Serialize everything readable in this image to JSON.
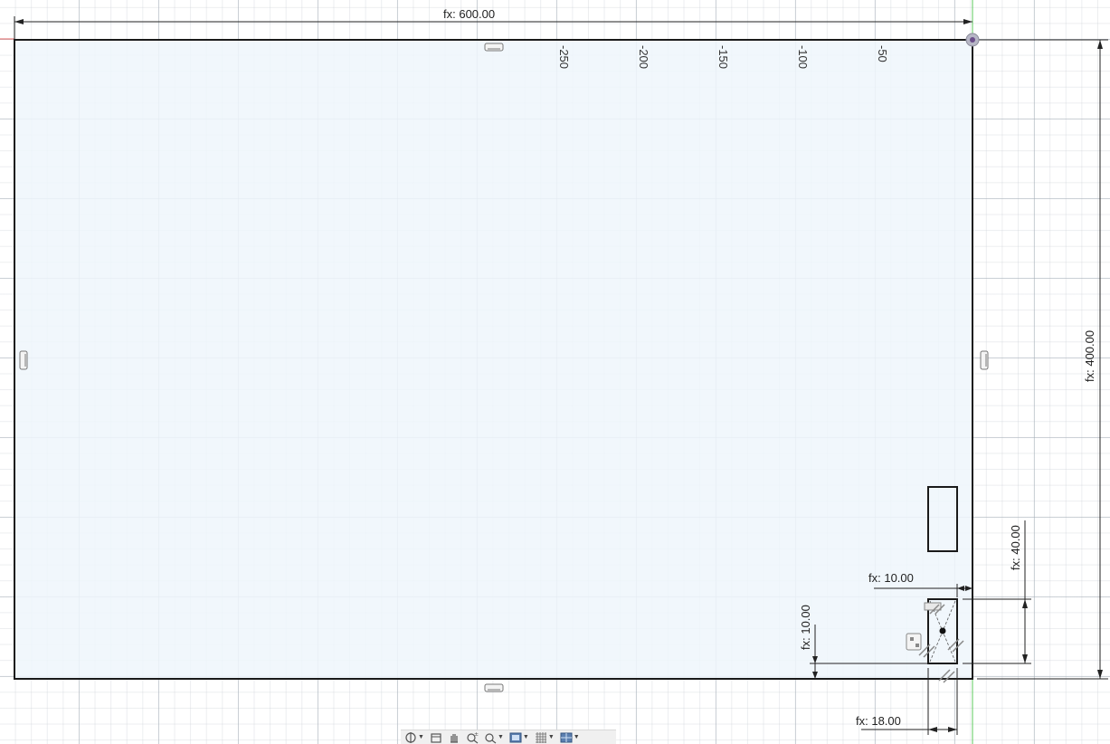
{
  "sketch": {
    "dimensions": {
      "width": "fx: 600.00",
      "height": "fx: 400.00",
      "hole_offset_x": "fx: 10.00",
      "hole_offset_y": "fx: 10.00",
      "hole_width": "fx: 18.00",
      "hole_height": "fx: 40.00"
    },
    "ruler_labels": [
      "-250",
      "-200",
      "-150",
      "-100",
      "-50"
    ]
  },
  "toolbar": {
    "icons": [
      "orbit-icon",
      "look-at-icon",
      "pan-icon",
      "zoom-icon",
      "fit-icon",
      "display-settings-icon",
      "grid-settings-icon",
      "viewports-icon"
    ]
  },
  "colors": {
    "profile_fill": "#eef6fb",
    "sketch_line": "#1a1a1a",
    "origin_axis_red": "#e06060",
    "origin_axis_green": "#5cc85c"
  }
}
